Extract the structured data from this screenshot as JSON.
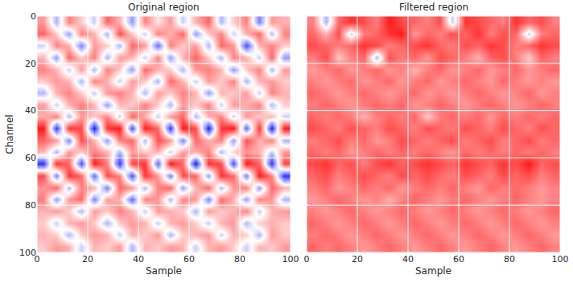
{
  "chart_data": [
    {
      "type": "heatmap",
      "title": "Original region",
      "x_label": "Sample",
      "y_label": "Channel",
      "xlim": [
        0,
        100
      ],
      "ylim": [
        100,
        0
      ],
      "xticks": [
        0,
        20,
        40,
        60,
        80,
        100
      ],
      "yticks": [
        0,
        20,
        40,
        60,
        80,
        100
      ],
      "zlim": [
        -1,
        1
      ],
      "grid": true,
      "cells": [
        [
          0.4,
          -0.3,
          0.5,
          0.2,
          -0.2,
          0.6,
          0.3,
          -0.4,
          0.5,
          0.1,
          0.4,
          -0.2,
          0.3,
          0.6,
          -0.3,
          0.2,
          0.5,
          -0.5,
          0.4,
          0.3
        ],
        [
          0.6,
          0.2,
          -0.4,
          0.5,
          0.3,
          -0.3,
          0.7,
          0.2,
          -0.2,
          0.5,
          0.3,
          0.6,
          -0.4,
          0.2,
          0.5,
          -0.2,
          0.3,
          0.6,
          -0.3,
          0.5
        ],
        [
          -0.2,
          0.5,
          0.3,
          -0.5,
          0.4,
          0.2,
          -0.3,
          0.6,
          0.4,
          -0.6,
          0.5,
          0.2,
          0.4,
          -0.3,
          0.6,
          0.4,
          -0.7,
          0.3,
          0.5,
          0.2
        ],
        [
          0.3,
          -0.4,
          0.6,
          0.2,
          0.5,
          -0.3,
          0.4,
          0.3,
          -0.2,
          0.5,
          -0.4,
          0.3,
          0.6,
          0.2,
          -0.3,
          0.5,
          0.3,
          -0.2,
          0.6,
          -0.4
        ],
        [
          0.5,
          0.3,
          -0.2,
          0.4,
          -0.3,
          0.5,
          0.2,
          -0.4,
          0.6,
          0.3,
          0.2,
          -0.3,
          0.4,
          0.5,
          0.3,
          -0.4,
          0.2,
          0.5,
          -0.3,
          0.4
        ],
        [
          0.2,
          0.4,
          0.3,
          -0.3,
          0.5,
          0.3,
          -0.2,
          0.4,
          0.2,
          -0.3,
          0.6,
          0.3,
          -0.2,
          0.4,
          0.2,
          0.5,
          -0.3,
          0.3,
          0.4,
          0.2
        ],
        [
          -0.3,
          0.3,
          0.5,
          0.2,
          -0.2,
          0.4,
          0.5,
          0.3,
          -0.3,
          0.4,
          0.2,
          0.5,
          0.3,
          -0.4,
          0.3,
          0.2,
          0.4,
          -0.2,
          0.5,
          0.3
        ],
        [
          0.4,
          -0.2,
          0.3,
          0.5,
          0.3,
          -0.4,
          0.3,
          0.2,
          0.5,
          0.2,
          -0.3,
          0.4,
          0.2,
          0.5,
          -0.2,
          0.4,
          0.3,
          0.5,
          -0.3,
          0.2
        ],
        [
          0.3,
          0.5,
          -0.3,
          0.4,
          0.2,
          0.5,
          -0.2,
          0.6,
          0.3,
          -0.2,
          0.4,
          0.6,
          -0.3,
          0.3,
          0.5,
          -0.2,
          0.4,
          0.2,
          0.3,
          -0.2
        ],
        [
          0.9,
          -0.8,
          0.8,
          0.7,
          -0.9,
          0.8,
          0.9,
          -0.7,
          0.9,
          0.6,
          -0.8,
          0.9,
          0.7,
          -0.9,
          0.8,
          0.9,
          -0.6,
          0.8,
          -0.9,
          0.9
        ],
        [
          0.6,
          0.4,
          -0.5,
          0.7,
          0.3,
          -0.4,
          0.5,
          0.6,
          -0.3,
          0.7,
          0.4,
          -0.5,
          0.6,
          0.3,
          0.5,
          -0.4,
          0.7,
          0.3,
          0.5,
          -0.3
        ],
        [
          0.3,
          -0.3,
          0.4,
          0.2,
          0.5,
          0.3,
          -0.3,
          0.4,
          0.2,
          0.3,
          -0.2,
          0.4,
          0.3,
          0.5,
          -0.3,
          0.2,
          0.4,
          0.3,
          -0.2,
          0.4
        ],
        [
          -0.8,
          0.8,
          0.6,
          -0.7,
          0.9,
          0.5,
          -0.8,
          0.7,
          0.8,
          -0.6,
          0.9,
          0.6,
          -0.9,
          0.8,
          0.7,
          -0.7,
          0.9,
          0.6,
          -0.8,
          0.7
        ],
        [
          0.7,
          -0.5,
          0.8,
          0.6,
          -0.6,
          0.7,
          0.5,
          -0.7,
          0.8,
          0.4,
          -0.5,
          0.7,
          0.6,
          -0.4,
          0.8,
          0.6,
          -0.5,
          0.9,
          0.5,
          -0.8
        ],
        [
          0.4,
          0.6,
          -0.3,
          0.5,
          0.3,
          -0.5,
          0.6,
          0.4,
          -0.3,
          0.5,
          0.6,
          -0.4,
          0.3,
          0.6,
          -0.3,
          0.4,
          0.5,
          -0.4,
          0.6,
          0.3
        ],
        [
          0.5,
          -0.4,
          0.4,
          0.6,
          -0.5,
          0.4,
          0.3,
          -0.6,
          0.5,
          0.4,
          -0.3,
          0.5,
          0.4,
          -0.5,
          0.6,
          0.3,
          -0.4,
          0.5,
          0.4,
          -0.3
        ],
        [
          0.3,
          0.4,
          0.2,
          -0.3,
          0.4,
          0.2,
          0.5,
          0.3,
          -0.2,
          0.4,
          0.3,
          0.2,
          -0.3,
          0.4,
          0.2,
          0.3,
          0.5,
          -0.2,
          0.3,
          0.4
        ],
        [
          0.2,
          -0.2,
          0.3,
          0.4,
          0.2,
          -0.3,
          0.2,
          0.4,
          0.3,
          -0.2,
          0.3,
          0.4,
          0.2,
          -0.2,
          0.3,
          0.4,
          -0.3,
          0.2,
          0.3,
          0.2
        ],
        [
          0.3,
          0.2,
          -0.3,
          0.2,
          0.4,
          0.3,
          -0.2,
          0.3,
          0.2,
          0.4,
          -0.3,
          0.2,
          0.3,
          0.4,
          -0.2,
          0.3,
          0.2,
          -0.3,
          0.4,
          0.2
        ],
        [
          0.2,
          0.4,
          0.3,
          -0.2,
          0.3,
          0.2,
          0.4,
          -0.3,
          0.3,
          0.2,
          0.4,
          0.3,
          -0.2,
          0.3,
          0.4,
          0.2,
          -0.2,
          0.3,
          0.2,
          0.4
        ]
      ]
    },
    {
      "type": "heatmap",
      "title": "Filtered region",
      "x_label": "Sample",
      "xlim": [
        0,
        100
      ],
      "ylim": [
        100,
        0
      ],
      "xticks": [
        0,
        20,
        40,
        60,
        80,
        100
      ],
      "yticks": [
        0,
        20,
        40,
        60,
        80,
        100
      ],
      "zlim": [
        -1,
        1
      ],
      "grid": true,
      "tick_labels": "x",
      "cells": [
        [
          0.5,
          -0.3,
          0.6,
          0.8,
          0.7,
          0.5,
          0.9,
          0.7,
          0.6,
          0.5,
          0.7,
          -0.2,
          0.8,
          0.7,
          0.6,
          0.5,
          0.8,
          0.6,
          0.7,
          0.5
        ],
        [
          0.6,
          0.3,
          0.7,
          -0.2,
          0.5,
          0.6,
          0.8,
          0.9,
          0.4,
          0.6,
          0.5,
          0.7,
          0.6,
          0.8,
          0.5,
          0.7,
          0.6,
          -0.2,
          0.5,
          0.6
        ],
        [
          0.7,
          0.6,
          0.5,
          0.6,
          0.8,
          0.7,
          0.5,
          0.6,
          0.7,
          0.8,
          0.6,
          0.5,
          0.7,
          0.6,
          0.8,
          0.7,
          0.5,
          0.6,
          0.8,
          0.7
        ],
        [
          0.5,
          0.7,
          0.2,
          0.5,
          0.6,
          -0.3,
          0.7,
          0.5,
          0.6,
          0.4,
          0.7,
          0.6,
          0.5,
          0.3,
          0.6,
          0.7,
          0.5,
          0.2,
          0.6,
          0.5
        ],
        [
          0.4,
          0.5,
          0.6,
          0.4,
          0.5,
          0.6,
          0.4,
          0.5,
          0.3,
          0.5,
          0.6,
          0.4,
          0.5,
          0.6,
          0.4,
          0.5,
          0.6,
          0.4,
          0.5,
          0.6
        ],
        [
          0.5,
          0.4,
          0.5,
          0.6,
          0.4,
          0.5,
          0.6,
          0.4,
          0.5,
          0.6,
          0.4,
          0.5,
          0.6,
          0.5,
          0.4,
          0.6,
          0.5,
          0.4,
          0.5,
          0.4
        ],
        [
          0.6,
          0.5,
          0.4,
          0.5,
          0.6,
          0.5,
          0.4,
          0.5,
          0.6,
          0.4,
          0.5,
          0.4,
          0.5,
          0.6,
          0.5,
          0.4,
          0.5,
          0.6,
          0.4,
          0.5
        ],
        [
          0.5,
          0.6,
          0.5,
          0.4,
          0.5,
          0.6,
          0.5,
          0.6,
          0.4,
          0.5,
          0.6,
          0.5,
          0.4,
          0.5,
          0.6,
          0.5,
          0.4,
          0.5,
          0.6,
          0.5
        ],
        [
          0.6,
          0.5,
          0.6,
          0.5,
          0.3,
          0.5,
          0.6,
          0.5,
          0.6,
          0.2,
          0.5,
          0.6,
          0.5,
          0.6,
          0.4,
          0.6,
          0.5,
          0.6,
          0.5,
          0.6
        ],
        [
          0.7,
          0.6,
          0.5,
          0.7,
          0.6,
          0.5,
          0.7,
          0.6,
          0.5,
          0.7,
          0.6,
          0.5,
          0.7,
          0.6,
          0.5,
          0.7,
          0.6,
          0.5,
          0.7,
          0.6
        ],
        [
          0.5,
          0.6,
          0.7,
          0.5,
          0.6,
          0.4,
          0.5,
          0.7,
          0.6,
          0.5,
          0.6,
          0.7,
          0.5,
          0.6,
          0.7,
          0.5,
          0.6,
          0.7,
          0.5,
          0.6
        ],
        [
          0.6,
          0.5,
          0.6,
          0.4,
          0.5,
          0.6,
          0.5,
          0.6,
          0.5,
          0.6,
          0.5,
          0.4,
          0.6,
          0.5,
          0.6,
          0.5,
          0.6,
          0.5,
          0.6,
          0.5
        ],
        [
          0.7,
          0.8,
          0.6,
          0.7,
          0.5,
          0.7,
          0.8,
          0.6,
          0.7,
          0.8,
          0.7,
          0.6,
          0.8,
          0.7,
          0.6,
          0.8,
          0.7,
          0.9,
          0.6,
          0.7
        ],
        [
          0.6,
          0.7,
          0.5,
          0.6,
          0.7,
          0.6,
          0.5,
          0.7,
          0.6,
          0.7,
          0.6,
          0.5,
          0.7,
          0.6,
          0.5,
          0.7,
          0.6,
          0.7,
          0.5,
          0.6
        ],
        [
          0.5,
          0.6,
          0.4,
          0.5,
          0.6,
          0.5,
          0.6,
          0.4,
          0.5,
          0.6,
          0.5,
          0.6,
          0.5,
          0.4,
          0.6,
          0.5,
          0.6,
          0.5,
          0.4,
          0.5
        ],
        [
          0.4,
          0.5,
          0.6,
          0.5,
          0.4,
          0.5,
          0.3,
          0.5,
          0.6,
          0.5,
          0.4,
          0.5,
          0.6,
          0.5,
          0.4,
          0.5,
          0.6,
          0.5,
          0.4,
          0.5
        ],
        [
          0.5,
          0.4,
          0.5,
          0.6,
          0.5,
          0.4,
          0.5,
          0.6,
          0.5,
          0.4,
          0.5,
          0.6,
          0.5,
          0.4,
          0.5,
          0.6,
          0.5,
          0.4,
          0.5,
          0.6
        ],
        [
          0.6,
          0.5,
          0.4,
          0.5,
          0.6,
          0.5,
          0.4,
          0.5,
          0.6,
          0.5,
          0.4,
          0.5,
          0.6,
          0.5,
          0.4,
          0.5,
          0.6,
          0.5,
          0.4,
          0.5
        ],
        [
          0.5,
          0.6,
          0.5,
          0.4,
          0.5,
          0.6,
          0.5,
          0.4,
          0.5,
          0.6,
          0.5,
          0.4,
          0.5,
          0.6,
          0.5,
          0.4,
          0.5,
          0.6,
          0.5,
          0.4
        ],
        [
          0.6,
          0.5,
          0.6,
          0.5,
          0.4,
          0.5,
          0.6,
          0.5,
          0.4,
          0.5,
          0.6,
          0.5,
          0.4,
          0.5,
          0.6,
          0.5,
          0.4,
          0.5,
          0.6,
          0.5
        ]
      ]
    }
  ]
}
